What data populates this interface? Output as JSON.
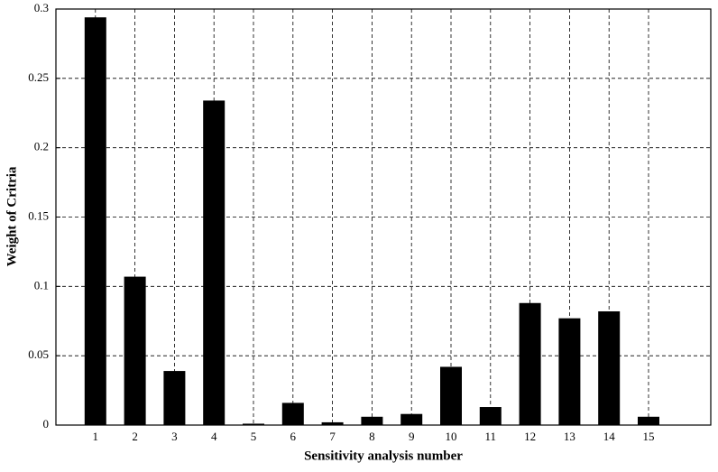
{
  "chart_data": {
    "type": "bar",
    "xlabel": "Sensitivity analysis number",
    "ylabel": "Weight of Critria",
    "categories": [
      "1",
      "2",
      "3",
      "4",
      "5",
      "6",
      "7",
      "8",
      "9",
      "10",
      "11",
      "12",
      "13",
      "14",
      "15"
    ],
    "values": [
      0.294,
      0.107,
      0.039,
      0.234,
      0.001,
      0.016,
      0.002,
      0.006,
      0.008,
      0.042,
      0.013,
      0.088,
      0.077,
      0.082,
      0.006
    ],
    "color": "#000000",
    "ylim": [
      0,
      0.3
    ],
    "yticks": [
      0,
      0.05,
      0.1,
      0.15,
      0.2,
      0.25,
      0.3
    ],
    "grid": true
  }
}
